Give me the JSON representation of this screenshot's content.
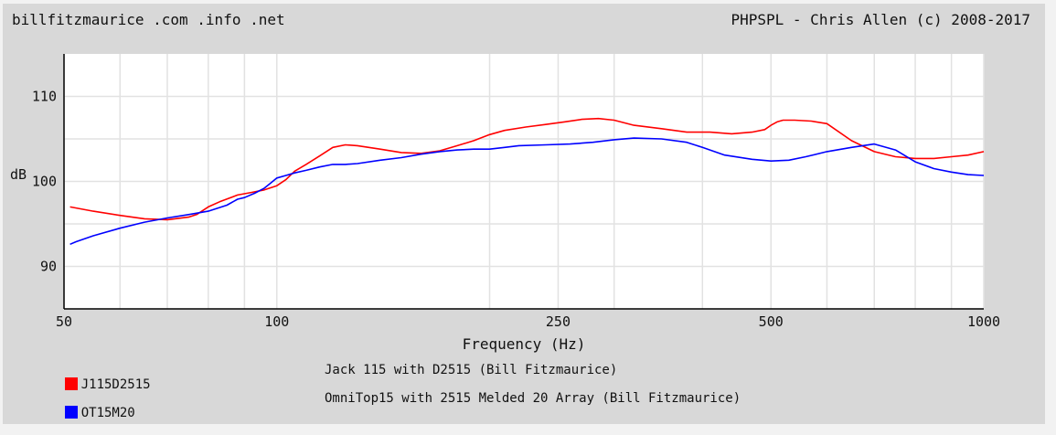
{
  "header": {
    "site": "billfitzmaurice .com .info .net",
    "credit": "PHPSPL - Chris Allen (c) 2008-2017"
  },
  "chart_data": {
    "type": "line",
    "title": "",
    "xlabel": "Frequency (Hz)",
    "ylabel": "dB",
    "xscale": "log",
    "xlim": [
      50,
      1000
    ],
    "ylim": [
      85,
      115
    ],
    "x_ticks": [
      50,
      100,
      250,
      500,
      1000
    ],
    "y_ticks": [
      90,
      100,
      110
    ],
    "grid": true,
    "legend_position": "bottom",
    "series": [
      {
        "name": "J115D2515",
        "description": "Jack 115 with D2515 (Bill Fitzmaurice)",
        "color": "#ff0000",
        "x": [
          51,
          55,
          60,
          65,
          70,
          75,
          77,
          80,
          83,
          88,
          92,
          96,
          100,
          103,
          106,
          110,
          115,
          120,
          125,
          130,
          140,
          150,
          160,
          170,
          180,
          190,
          200,
          210,
          225,
          240,
          255,
          270,
          285,
          300,
          320,
          350,
          380,
          410,
          440,
          470,
          490,
          500,
          510,
          520,
          540,
          570,
          600,
          650,
          700,
          750,
          800,
          850,
          900,
          950,
          1000
        ],
        "y": [
          97,
          96.5,
          96,
          95.6,
          95.5,
          95.8,
          96.1,
          97,
          97.6,
          98.4,
          98.7,
          99,
          99.5,
          100.2,
          101.2,
          102,
          103,
          104,
          104.3,
          104.2,
          103.8,
          103.4,
          103.3,
          103.6,
          104.2,
          104.8,
          105.5,
          106,
          106.4,
          106.7,
          107,
          107.3,
          107.4,
          107.2,
          106.6,
          106.2,
          105.8,
          105.8,
          105.6,
          105.8,
          106.1,
          106.6,
          107,
          107.2,
          107.2,
          107.1,
          106.8,
          104.8,
          103.5,
          102.9,
          102.7,
          102.7,
          102.9,
          103.1,
          103.5
        ]
      },
      {
        "name": "OT15M20",
        "description": "OmniTop15 with 2515 Melded 20 Array (Bill Fitzmaurice)",
        "color": "#0000ff",
        "x": [
          51,
          52,
          55,
          60,
          65,
          70,
          75,
          80,
          85,
          88,
          90,
          93,
          96,
          98,
          100,
          103,
          106,
          110,
          115,
          120,
          125,
          130,
          140,
          150,
          160,
          170,
          180,
          190,
          200,
          210,
          220,
          240,
          260,
          280,
          300,
          320,
          350,
          380,
          400,
          430,
          470,
          500,
          530,
          560,
          600,
          650,
          700,
          750,
          800,
          850,
          900,
          950,
          1000
        ],
        "y": [
          92.6,
          92.9,
          93.6,
          94.5,
          95.2,
          95.7,
          96.1,
          96.5,
          97.2,
          97.9,
          98.1,
          98.6,
          99.2,
          99.8,
          100.4,
          100.7,
          101,
          101.3,
          101.7,
          102,
          102,
          102.1,
          102.5,
          102.8,
          103.2,
          103.5,
          103.7,
          103.8,
          103.8,
          104,
          104.2,
          104.3,
          104.4,
          104.6,
          104.9,
          105.1,
          105,
          104.6,
          104,
          103.1,
          102.6,
          102.4,
          102.5,
          102.9,
          103.5,
          104,
          104.4,
          103.7,
          102.3,
          101.5,
          101.1,
          100.8,
          100.7
        ]
      }
    ]
  }
}
